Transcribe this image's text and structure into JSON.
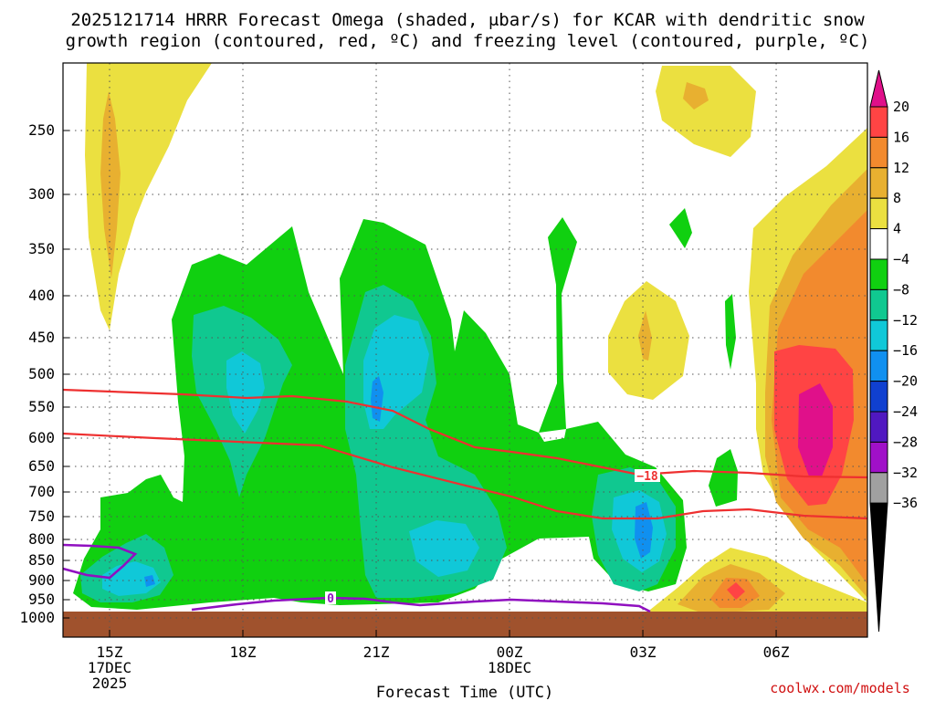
{
  "chart_data": {
    "type": "heatmap",
    "title_line1": "2025121714 HRRR Forecast Omega (shaded, μbar/s) for KCAR with dendritic snow",
    "title_line2": "growth region (contoured, red, ºC) and freezing level (contoured, purple, ºC)",
    "xlabel": "Forecast Time (UTC)",
    "credit": "coolwx.com/models",
    "y_axis": {
      "label": "",
      "unit": "hPa",
      "ticks": [
        "250",
        "300",
        "350",
        "400",
        "450",
        "500",
        "550",
        "600",
        "650",
        "700",
        "750",
        "800",
        "850",
        "900",
        "950",
        "1000"
      ],
      "reversed": true
    },
    "x_axis": {
      "ticks": [
        {
          "hour": 15,
          "line1": "15Z",
          "line2": "17DEC",
          "line3": "2025"
        },
        {
          "hour": 18,
          "line1": "18Z",
          "line2": "",
          "line3": ""
        },
        {
          "hour": 21,
          "line1": "21Z",
          "line2": "",
          "line3": ""
        },
        {
          "hour": 24,
          "line1": "00Z",
          "line2": "18DEC",
          "line3": ""
        },
        {
          "hour": 27,
          "line1": "03Z",
          "line2": "",
          "line3": ""
        },
        {
          "hour": 30,
          "line1": "06Z",
          "line2": "",
          "line3": ""
        }
      ]
    },
    "grid": true,
    "colorbar": {
      "labels": [
        "20",
        "16",
        "12",
        "8",
        "4",
        "−4",
        "−8",
        "−12",
        "−16",
        "−20",
        "−24",
        "−28",
        "−32",
        "−36"
      ],
      "colors": [
        "#e0108a",
        "#ff4444",
        "#f28a2e",
        "#e8b030",
        "#ebe040",
        "#ffffff",
        "#10d010",
        "#10c890",
        "#10c8d8",
        "#1090f0",
        "#1040d0",
        "#5018c0",
        "#a010c8",
        "#a0a0a0",
        "#000000"
      ],
      "top_cap_color": "#e0108a",
      "bottom_cap_color": "#000000"
    },
    "contours": [
      {
        "kind": "dendritic",
        "label": "−18",
        "color": "#ee3030"
      },
      {
        "kind": "dendritic",
        "label": "",
        "color": "#ee3030"
      },
      {
        "kind": "freezing",
        "label": "0",
        "color": "#9010c0"
      }
    ],
    "ground_color": "#a0522d"
  }
}
